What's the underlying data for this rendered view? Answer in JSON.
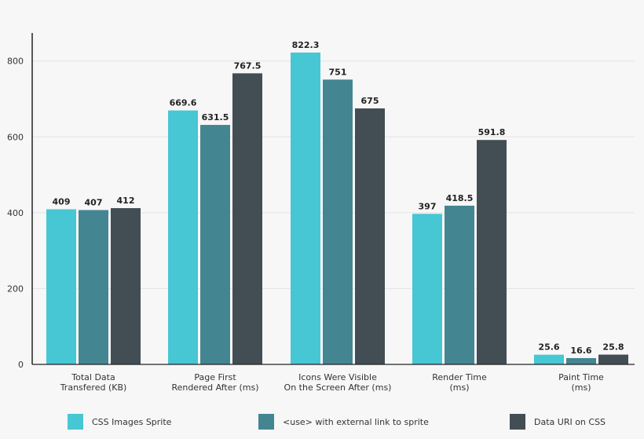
{
  "chart_data": {
    "type": "bar",
    "categories": [
      [
        "Total Data",
        "Transfered (KB)"
      ],
      [
        "Page First",
        "Rendered After (ms)"
      ],
      [
        "Icons Were Visible",
        "On the Screen After (ms)"
      ],
      [
        "Render Time",
        "(ms)"
      ],
      [
        "Paint Time",
        "(ms)"
      ]
    ],
    "series": [
      {
        "name": "CSS Images Sprite",
        "color": "#47c6d3",
        "values": [
          409,
          669.6,
          822.3,
          397,
          25.6
        ],
        "labels": [
          "409",
          "669.6",
          "822.3",
          "397",
          "25.6"
        ]
      },
      {
        "name": "<use> with external link to sprite",
        "color": "#438692",
        "values": [
          407,
          631.5,
          751,
          418.5,
          16.6
        ],
        "labels": [
          "407",
          "631.5",
          "751",
          "418.5",
          "16.6"
        ]
      },
      {
        "name": "Data URI on CSS",
        "color": "#424e54",
        "values": [
          412,
          767.5,
          675,
          591.8,
          25.8
        ],
        "labels": [
          "412",
          "767.5",
          "675",
          "591.8",
          "25.8"
        ]
      }
    ],
    "yticks": [
      0,
      200,
      400,
      600,
      800
    ],
    "ylim": [
      0,
      880
    ],
    "grid": true,
    "legend_position": "bottom"
  }
}
